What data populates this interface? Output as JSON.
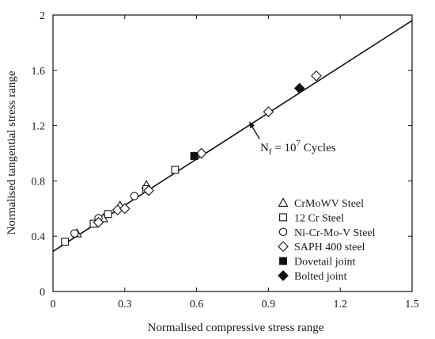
{
  "chart_data": {
    "type": "scatter",
    "xlabel": "Normalised compressive stress range",
    "ylabel": "Normalised tangential stress range",
    "xlim": [
      0,
      1.5
    ],
    "ylim": [
      0,
      2
    ],
    "xticks": [
      0,
      0.3,
      0.6,
      0.9,
      1.2,
      1.5
    ],
    "yticks": [
      0,
      0.4,
      0.8,
      1.2,
      1.6,
      2
    ],
    "xtick_labels": [
      "0",
      "0.3",
      "0.6",
      "0.9",
      "1.2",
      "1.5"
    ],
    "ytick_labels": [
      "0",
      "0.4",
      "0.8",
      "1.2",
      "1.6",
      "2"
    ],
    "grid": false,
    "legend_position": "bottom-right",
    "fit_line": {
      "x": [
        0,
        1.5
      ],
      "y": [
        0.29,
        1.96
      ]
    },
    "annotation": {
      "text_main": "N",
      "text_sub": "f",
      "text_mid": " = 10",
      "text_sup": "7",
      "text_end": " Cycles",
      "points_to": [
        0.82,
        1.23
      ]
    },
    "series": [
      {
        "name": "CrMoWV Steel",
        "marker": "triangle-open",
        "points": [
          [
            0.1,
            0.42
          ],
          [
            0.21,
            0.53
          ],
          [
            0.28,
            0.62
          ],
          [
            0.39,
            0.77
          ]
        ]
      },
      {
        "name": "12 Cr Steel",
        "marker": "square-open",
        "points": [
          [
            0.05,
            0.36
          ],
          [
            0.17,
            0.49
          ],
          [
            0.23,
            0.56
          ],
          [
            0.39,
            0.74
          ],
          [
            0.51,
            0.88
          ]
        ]
      },
      {
        "name": "Ni-Cr-Mo-V Steel",
        "marker": "circle-open",
        "points": [
          [
            0.09,
            0.42
          ],
          [
            0.19,
            0.53
          ],
          [
            0.34,
            0.69
          ]
        ]
      },
      {
        "name": "SAPH 400 steel",
        "marker": "diamond-open",
        "points": [
          [
            0.19,
            0.5
          ],
          [
            0.27,
            0.59
          ],
          [
            0.3,
            0.6
          ],
          [
            0.4,
            0.73
          ],
          [
            0.62,
            1.0
          ],
          [
            0.9,
            1.3
          ],
          [
            1.1,
            1.56
          ]
        ]
      },
      {
        "name": "Dovetail joint",
        "marker": "square-filled",
        "points": [
          [
            0.59,
            0.98
          ]
        ]
      },
      {
        "name": "Bolted joint",
        "marker": "diamond-filled",
        "points": [
          [
            1.03,
            1.47
          ]
        ]
      }
    ]
  }
}
